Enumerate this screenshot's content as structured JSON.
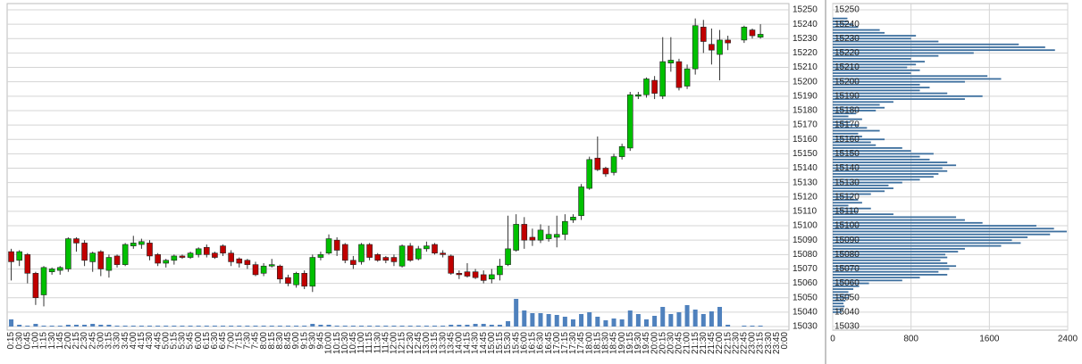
{
  "chart_data": [
    {
      "type": "candlestick",
      "categories": [
        "0:15",
        "0:30",
        "0:45",
        "1:00",
        "1:15",
        "1:30",
        "1:45",
        "2:00",
        "2:15",
        "2:30",
        "2:45",
        "3:00",
        "3:15",
        "3:30",
        "3:45",
        "4:00",
        "4:15",
        "4:30",
        "4:45",
        "5:00",
        "5:15",
        "5:30",
        "5:45",
        "6:00",
        "6:15",
        "6:30",
        "6:45",
        "7:00",
        "7:15",
        "7:30",
        "7:45",
        "8:00",
        "8:15",
        "8:30",
        "8:45",
        "9:00",
        "9:15",
        "9:30",
        "9:45",
        "10:00",
        "10:15",
        "10:30",
        "10:45",
        "11:00",
        "11:15",
        "11:30",
        "11:45",
        "12:00",
        "12:15",
        "12:30",
        "12:45",
        "13:00",
        "13:15",
        "13:30",
        "13:45",
        "14:00",
        "14:15",
        "14:30",
        "14:45",
        "15:00",
        "15:15",
        "15:30",
        "15:45",
        "16:00",
        "16:15",
        "16:30",
        "16:45",
        "17:00",
        "17:15",
        "17:30",
        "17:45",
        "18:00",
        "18:15",
        "18:30",
        "18:45",
        "19:00",
        "19:15",
        "19:30",
        "19:45",
        "20:00",
        "20:15",
        "20:30",
        "20:45",
        "21:00",
        "21:15",
        "21:30",
        "21:45",
        "22:00",
        "22:15",
        "22:30",
        "22:45",
        "23:00",
        "23:15",
        "23:30",
        "23:45",
        "0:00"
      ],
      "open": [
        15082,
        15076,
        15080,
        15067,
        15052,
        15068,
        15069,
        15070,
        15091,
        15088,
        15075,
        15082,
        15069,
        15079,
        15073,
        15086,
        15087,
        15088,
        15080,
        15074,
        15076,
        15079,
        15078,
        15080,
        15085,
        15081,
        15086,
        15081,
        15077,
        15076,
        15073,
        15067,
        15072,
        15072,
        15064,
        15059,
        15067,
        15058,
        15078,
        15081,
        15090,
        15087,
        15076,
        15075,
        15087,
        15080,
        15078,
        15078,
        15072,
        15086,
        15077,
        15084,
        15087,
        15081,
        15079,
        15067,
        15068,
        15068,
        15066,
        15063,
        15066,
        15073,
        15083,
        15101,
        15092,
        15090,
        15091,
        15092,
        15094,
        15104,
        15107,
        15126,
        15147,
        15140,
        15137,
        15148,
        15154,
        15190,
        15191,
        15201,
        15190,
        15213,
        15214,
        15197,
        15209,
        15238,
        15226,
        15219,
        15229,
        null,
        15229,
        15236,
        15231,
        null,
        null,
        null
      ],
      "high": [
        15084,
        15083,
        15081,
        15068,
        15072,
        15071,
        15072,
        15092,
        15092,
        15090,
        15082,
        15083,
        15080,
        15080,
        15088,
        15093,
        15091,
        15090,
        15081,
        15077,
        15080,
        15080,
        15082,
        15085,
        15087,
        15082,
        15087,
        15083,
        15078,
        15077,
        15075,
        15074,
        15077,
        15073,
        15066,
        15068,
        15069,
        15080,
        15082,
        15094,
        15092,
        15088,
        15079,
        15088,
        15088,
        15081,
        15079,
        15080,
        15087,
        15088,
        15086,
        15089,
        15088,
        15083,
        15080,
        15069,
        15074,
        15070,
        15069,
        15070,
        15077,
        15107,
        15108,
        15106,
        15098,
        15101,
        15100,
        15107,
        15108,
        15108,
        15129,
        15148,
        15162,
        15141,
        15150,
        15157,
        15193,
        15193,
        15203,
        15204,
        15231,
        15231,
        15216,
        15212,
        15244,
        15243,
        15237,
        15236,
        15232,
        null,
        15239,
        15237,
        15240,
        null,
        null,
        null
      ],
      "low": [
        15062,
        15072,
        15060,
        15045,
        15044,
        15066,
        15066,
        15068,
        15082,
        15072,
        15068,
        15065,
        15064,
        15071,
        15072,
        15084,
        15084,
        15076,
        15072,
        15071,
        15073,
        15077,
        15077,
        15078,
        15078,
        15077,
        15079,
        15072,
        15071,
        15070,
        15065,
        15065,
        15071,
        15060,
        15058,
        15057,
        15056,
        15054,
        15076,
        15080,
        15079,
        15074,
        15070,
        15073,
        15076,
        15075,
        15074,
        15072,
        15071,
        15075,
        15076,
        15082,
        15080,
        15078,
        15066,
        15063,
        15064,
        15063,
        15060,
        15060,
        15062,
        15072,
        15082,
        15084,
        15086,
        15088,
        15089,
        15085,
        15090,
        15102,
        15104,
        15125,
        15138,
        15134,
        15135,
        15146,
        15152,
        15188,
        15189,
        15188,
        15188,
        15207,
        15194,
        15195,
        15205,
        15220,
        15212,
        15201,
        15222,
        null,
        15227,
        15230,
        15230,
        null,
        null,
        null
      ],
      "close": [
        15075,
        15082,
        15067,
        15050,
        15071,
        15070,
        15071,
        15091,
        15088,
        15076,
        15081,
        15070,
        15078,
        15073,
        15087,
        15088,
        15089,
        15079,
        15074,
        15076,
        15079,
        15078,
        15081,
        15084,
        15080,
        15078,
        15081,
        15075,
        15074,
        15073,
        15066,
        15072,
        15073,
        15063,
        15060,
        15067,
        15058,
        15078,
        15080,
        15091,
        15083,
        15076,
        15073,
        15087,
        15078,
        15076,
        15076,
        15075,
        15086,
        15076,
        15084,
        15086,
        15081,
        15080,
        15067,
        15066,
        15065,
        15064,
        15062,
        15066,
        15072,
        15084,
        15101,
        15090,
        15090,
        15097,
        15094,
        15094,
        15103,
        15106,
        15127,
        15146,
        15139,
        15136,
        15148,
        15155,
        15191,
        15191,
        15202,
        15192,
        15214,
        15215,
        15196,
        15209,
        15239,
        15228,
        15222,
        15229,
        15227,
        null,
        15238,
        15232,
        15233,
        null,
        null,
        null
      ],
      "volume": [
        80,
        20,
        10,
        30,
        10,
        10,
        10,
        20,
        20,
        20,
        30,
        20,
        20,
        10,
        10,
        10,
        10,
        10,
        10,
        10,
        10,
        10,
        10,
        10,
        10,
        10,
        10,
        10,
        10,
        10,
        10,
        10,
        10,
        10,
        10,
        10,
        10,
        30,
        20,
        20,
        10,
        10,
        10,
        10,
        10,
        10,
        10,
        10,
        10,
        10,
        10,
        10,
        10,
        10,
        20,
        20,
        20,
        30,
        30,
        20,
        20,
        60,
        310,
        180,
        150,
        150,
        140,
        130,
        110,
        80,
        140,
        160,
        110,
        70,
        90,
        80,
        180,
        140,
        80,
        120,
        220,
        140,
        160,
        240,
        190,
        140,
        170,
        220,
        20,
        null,
        10,
        10,
        10,
        null,
        null,
        null
      ],
      "up_color": "#00c000",
      "down_color": "#c00000",
      "volume_color": "#4f81bd",
      "ylim": [
        15030,
        15250
      ],
      "yticks": [
        15030,
        15040,
        15050,
        15060,
        15070,
        15080,
        15090,
        15100,
        15110,
        15120,
        15130,
        15140,
        15150,
        15160,
        15170,
        15180,
        15190,
        15200,
        15210,
        15220,
        15230,
        15240,
        15250
      ],
      "grid": true
    },
    {
      "type": "profile",
      "y": [
        15040,
        15042,
        15044,
        15046,
        15048,
        15050,
        15052,
        15054,
        15056,
        15058,
        15060,
        15062,
        15064,
        15066,
        15068,
        15070,
        15072,
        15074,
        15076,
        15078,
        15080,
        15082,
        15084,
        15086,
        15088,
        15090,
        15092,
        15094,
        15096,
        15098,
        15100,
        15102,
        15104,
        15106,
        15108,
        15110,
        15112,
        15114,
        15116,
        15118,
        15120,
        15122,
        15124,
        15126,
        15128,
        15130,
        15132,
        15134,
        15136,
        15138,
        15140,
        15142,
        15144,
        15146,
        15148,
        15150,
        15152,
        15154,
        15156,
        15158,
        15160,
        15162,
        15164,
        15166,
        15168,
        15170,
        15172,
        15174,
        15176,
        15178,
        15180,
        15182,
        15184,
        15186,
        15188,
        15190,
        15192,
        15194,
        15196,
        15198,
        15200,
        15202,
        15204,
        15206,
        15208,
        15210,
        15212,
        15214,
        15216,
        15218,
        15220,
        15222,
        15224,
        15226,
        15228,
        15230,
        15232,
        15234,
        15236,
        15238,
        15240,
        15242,
        15244
      ],
      "values": [
        90,
        110,
        120,
        110,
        130,
        160,
        180,
        160,
        210,
        270,
        370,
        710,
        890,
        1170,
        1080,
        1190,
        1260,
        1170,
        1100,
        1170,
        1150,
        1280,
        1350,
        1720,
        1920,
        1830,
        1990,
        2220,
        2390,
        2260,
        2080,
        1530,
        1350,
        1260,
        620,
        260,
        390,
        160,
        300,
        260,
        210,
        390,
        530,
        620,
        570,
        710,
        890,
        1030,
        1080,
        1170,
        1120,
        1260,
        1170,
        990,
        890,
        1030,
        800,
        710,
        440,
        390,
        530,
        300,
        260,
        480,
        350,
        260,
        180,
        300,
        160,
        240,
        440,
        530,
        480,
        620,
        1350,
        1530,
        1170,
        890,
        990,
        890,
        1350,
        1720,
        1580,
        800,
        890,
        760,
        850,
        940,
        800,
        1080,
        1440,
        2270,
        2170,
        1900,
        1080,
        800,
        850,
        530,
        480,
        260,
        210,
        160,
        150
      ],
      "color": "#3d6f9e",
      "xlim": [
        0,
        2400
      ],
      "xticks": [
        0,
        800,
        1600,
        2400
      ],
      "ylim": [
        15030,
        15250
      ],
      "yticks": [
        15030,
        15040,
        15050,
        15060,
        15070,
        15080,
        15090,
        15100,
        15110,
        15120,
        15130,
        15140,
        15150,
        15160,
        15170,
        15180,
        15190,
        15200,
        15210,
        15220,
        15230,
        15240,
        15250
      ],
      "grid": true
    }
  ]
}
